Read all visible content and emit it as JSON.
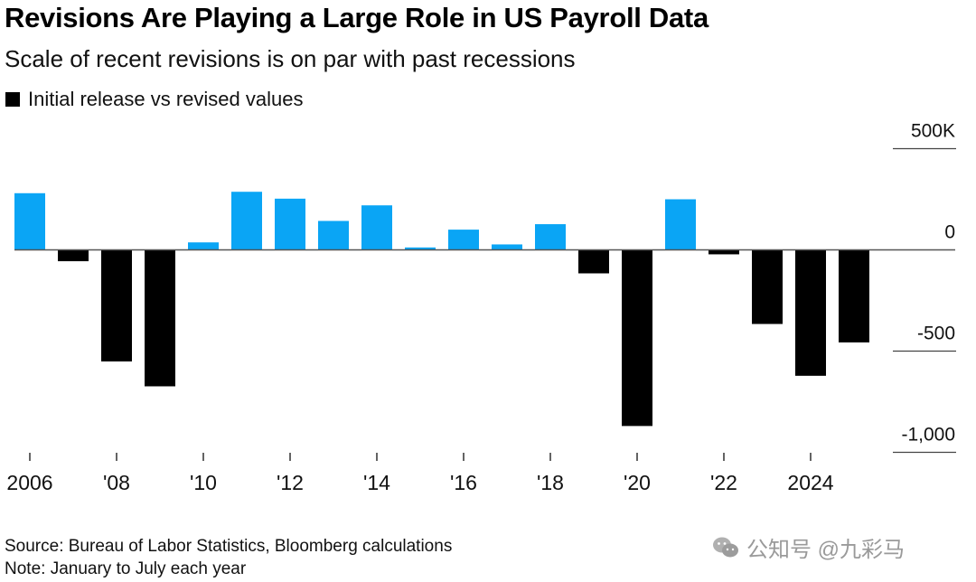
{
  "chart_data": {
    "type": "bar",
    "title": "Revisions Are Playing a Large Role in US Payroll Data",
    "subtitle": "Scale of recent revisions is on par with past recessions",
    "legend": [
      {
        "label": "Initial release vs revised values",
        "color": "#000000"
      }
    ],
    "legend_position": "top-left",
    "xlabel": "",
    "ylabel": "",
    "categories": [
      "2006",
      "2007",
      "2008",
      "2009",
      "2010",
      "2011",
      "2012",
      "2013",
      "2014",
      "2015",
      "2016",
      "2017",
      "2018",
      "2019",
      "2020",
      "2021",
      "2022",
      "2023",
      "2024",
      "2025"
    ],
    "values": [
      280,
      -56,
      -551,
      -674,
      37,
      287,
      253,
      143,
      220,
      12,
      100,
      27,
      127,
      -116,
      -870,
      250,
      -22,
      -366,
      -622,
      -457
    ],
    "units": "thousands of jobs",
    "ylim": [
      -1000,
      500
    ],
    "yticks": [
      500,
      0,
      -500,
      -1000
    ],
    "ytick_labels": [
      "500K",
      "0",
      "-500",
      "-1,000"
    ],
    "y_axis_side": "right",
    "xticks": [
      "2006",
      "2008",
      "2010",
      "2012",
      "2014",
      "2016",
      "2018",
      "2020",
      "2022",
      "2024"
    ],
    "xtick_labels": [
      "2006",
      "'08",
      "'10",
      "'12",
      "'14",
      "'16",
      "'18",
      "'20",
      "'22",
      "2024"
    ],
    "grid": true,
    "colors": {
      "positive": "#0aa5f5",
      "negative": "#000000",
      "zero_line": "#555555",
      "grid": "#444444"
    }
  },
  "footer": {
    "source": "Source: Bureau of Labor Statistics, Bloomberg calculations",
    "note": "Note: January to July each year"
  },
  "watermark": {
    "text": "公知号 @九彩马",
    "icon": "wechat-icon"
  }
}
